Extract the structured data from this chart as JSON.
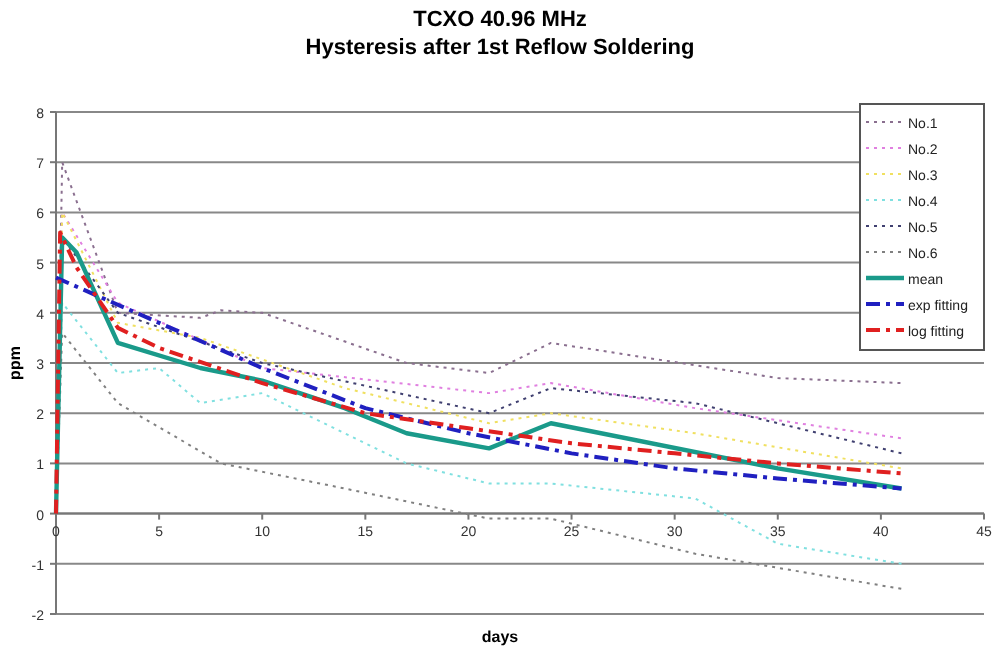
{
  "chart_data": {
    "type": "line",
    "title": "TCXO 40.96 MHz",
    "subtitle": "Hysteresis after 1st Reflow Soldering",
    "xlabel": "days",
    "ylabel": "ppm",
    "xlim": [
      0,
      45
    ],
    "xticks": [
      0,
      5,
      10,
      15,
      20,
      25,
      30,
      35,
      40,
      45
    ],
    "ylim": [
      -2,
      8
    ],
    "yticks": [
      -2,
      -1,
      0,
      1,
      2,
      3,
      4,
      5,
      6,
      7,
      8
    ],
    "grid": "y",
    "legend": "top right",
    "marker": "none",
    "series": [
      {
        "name": "No.1",
        "color": "#8a6f8f",
        "line_style": "dotted",
        "x": [
          0,
          0.3,
          3,
          7,
          8,
          10,
          17,
          21,
          24,
          35,
          41
        ],
        "values": [
          0,
          7,
          4,
          3.9,
          4.05,
          4,
          3,
          2.8,
          3.4,
          2.7,
          2.6
        ]
      },
      {
        "name": "No.2",
        "color": "#e080e0",
        "line_style": "dotted",
        "x": [
          0,
          0.3,
          3,
          10,
          21,
          24,
          31,
          41
        ],
        "values": [
          0,
          6,
          4.2,
          2.9,
          2.4,
          2.6,
          2.1,
          1.5
        ]
      },
      {
        "name": "No.3",
        "color": "#f0e060",
        "line_style": "dotted",
        "x": [
          0,
          0.3,
          3,
          7,
          14,
          21,
          24,
          31,
          41
        ],
        "values": [
          0,
          6,
          3.8,
          3.5,
          2.5,
          1.8,
          2,
          1.6,
          0.9
        ]
      },
      {
        "name": "No.4",
        "color": "#80e0e0",
        "line_style": "dotted",
        "x": [
          0,
          0.3,
          3,
          5,
          7,
          10,
          17,
          21,
          24,
          31,
          35,
          41
        ],
        "values": [
          0,
          4.2,
          2.8,
          2.9,
          2.2,
          2.4,
          1,
          0.6,
          0.6,
          0.3,
          -0.6,
          -1
        ]
      },
      {
        "name": "No.5",
        "color": "#404070",
        "line_style": "dotted",
        "x": [
          0,
          0.3,
          3,
          10,
          21,
          24,
          31,
          41
        ],
        "values": [
          0,
          5.5,
          4,
          3,
          2,
          2.5,
          2.2,
          1.2
        ]
      },
      {
        "name": "No.6",
        "color": "#808080",
        "line_style": "dotted",
        "x": [
          0,
          0.3,
          3,
          8,
          14,
          21,
          24,
          31,
          41
        ],
        "values": [
          0,
          3.6,
          2.2,
          1,
          0.5,
          -0.1,
          -0.1,
          -0.8,
          -1.5
        ]
      },
      {
        "name": "mean",
        "color": "#1a9a8a",
        "line_style": "solid",
        "x": [
          0,
          0.3,
          1,
          3,
          7,
          10,
          14,
          17,
          21,
          24,
          35,
          41
        ],
        "values": [
          0,
          5.5,
          5.2,
          3.4,
          2.9,
          2.65,
          2.1,
          1.6,
          1.3,
          1.8,
          0.9,
          0.5
        ]
      },
      {
        "name": "exp fitting",
        "color": "#2020c0",
        "line_style": "dashed",
        "x": [
          0,
          5,
          10,
          15,
          20,
          25,
          30,
          35,
          41
        ],
        "values": [
          4.7,
          3.8,
          2.9,
          2.1,
          1.6,
          1.2,
          0.9,
          0.7,
          0.5
        ]
      },
      {
        "name": "log fitting",
        "color": "#e02020",
        "line_style": "dashed",
        "x": [
          0,
          0.2,
          1,
          3,
          5,
          10,
          15,
          20,
          25,
          30,
          35,
          41
        ],
        "values": [
          0,
          5.6,
          4.9,
          3.7,
          3.3,
          2.6,
          2,
          1.7,
          1.4,
          1.2,
          1,
          0.8
        ]
      }
    ]
  }
}
